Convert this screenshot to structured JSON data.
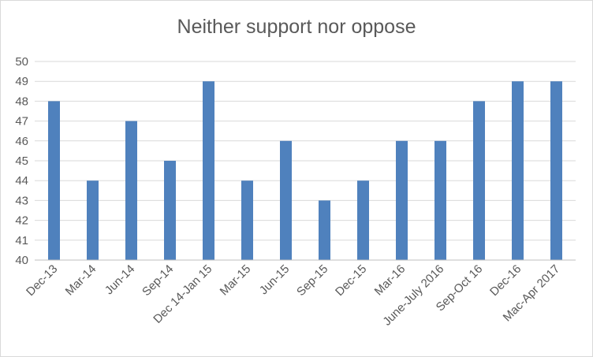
{
  "chart_data": {
    "type": "bar",
    "title": "Neither support nor oppose",
    "xlabel": "",
    "ylabel": "",
    "categories": [
      "Dec-13",
      "Mar-14",
      "Jun-14",
      "Sep-14",
      "Dec 14-Jan 15",
      "Mar-15",
      "Jun-15",
      "Sep-15",
      "Dec-15",
      "Mar-16",
      "June-July 2016",
      "Sep-Oct 16",
      "Dec-16",
      "Mac-Apr 2017"
    ],
    "values": [
      48,
      44,
      47,
      45,
      49,
      44,
      46,
      43,
      44,
      46,
      46,
      48,
      49,
      49
    ],
    "ylim": [
      40,
      50
    ],
    "yticks": [
      40,
      41,
      42,
      43,
      44,
      45,
      46,
      47,
      48,
      49,
      50
    ],
    "grid": true,
    "legend": "none",
    "colors": {
      "bar": "#4f81bd",
      "grid": "#d9d9d9",
      "text": "#595959"
    }
  }
}
